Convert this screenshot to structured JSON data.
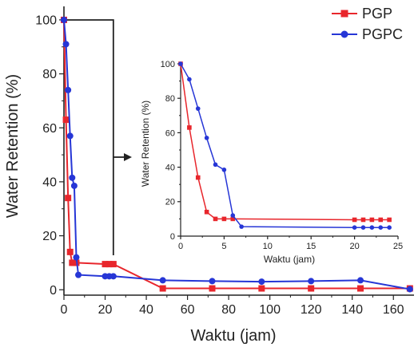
{
  "colors": {
    "PGP": "#e8262c",
    "PGPC": "#2636d6",
    "axis": "#222222"
  },
  "chart_data": [
    {
      "type": "line",
      "panel": "main",
      "xlabel": "Waktu (jam)",
      "ylabel": "Water Retention (%)",
      "xlim": [
        0,
        170
      ],
      "ylim": [
        -2,
        105
      ],
      "xticks": [
        0,
        20,
        40,
        60,
        80,
        100,
        120,
        140,
        160
      ],
      "yticks": [
        0,
        20,
        40,
        60,
        80,
        100
      ],
      "legend_position": "top-right",
      "grid": false,
      "series": [
        {
          "name": "PGP",
          "marker": "square",
          "x": [
            0,
            1,
            2,
            3,
            4,
            5,
            6,
            20,
            22,
            24,
            48,
            72,
            96,
            120,
            144,
            168
          ],
          "y": [
            100,
            63,
            34,
            14,
            10,
            10,
            10,
            9.5,
            9.5,
            9.5,
            0.5,
            0.5,
            0.5,
            0.5,
            0.5,
            0.5
          ]
        },
        {
          "name": "PGPC",
          "marker": "circle",
          "x": [
            0,
            1,
            2,
            3,
            4,
            5,
            6,
            7,
            20,
            22,
            24,
            48,
            72,
            96,
            120,
            144,
            168
          ],
          "y": [
            100,
            91,
            74,
            57,
            41.5,
            38.5,
            12,
            5.5,
            5,
            5,
            5,
            3.5,
            3.2,
            3,
            3.2,
            3.5,
            0.2
          ]
        }
      ],
      "annotation": "bracket from t=0 to t=24 pointing to the inset"
    },
    {
      "type": "line",
      "panel": "inset",
      "xlabel": "Waktu (jam)",
      "ylabel": "Water Retention (%)",
      "xlim": [
        0,
        25
      ],
      "ylim": [
        0,
        100
      ],
      "xticks": [
        0,
        5,
        10,
        15,
        20,
        25
      ],
      "yticks": [
        0,
        20,
        40,
        60,
        80,
        100
      ],
      "grid": false,
      "series": [
        {
          "name": "PGP",
          "marker": "square",
          "x": [
            0,
            1,
            2,
            3,
            4,
            5,
            6,
            20,
            21,
            22,
            23,
            24
          ],
          "y": [
            100,
            63,
            34,
            14,
            10,
            10,
            10,
            9.5,
            9.5,
            9.5,
            9.5,
            9.5
          ]
        },
        {
          "name": "PGPC",
          "marker": "circle",
          "x": [
            0,
            1,
            2,
            3,
            4,
            5,
            6,
            7,
            20,
            21,
            22,
            23,
            24
          ],
          "y": [
            100,
            91,
            74,
            57,
            41.5,
            38.5,
            12,
            5.5,
            5,
            5,
            5,
            5,
            5
          ]
        }
      ]
    }
  ]
}
